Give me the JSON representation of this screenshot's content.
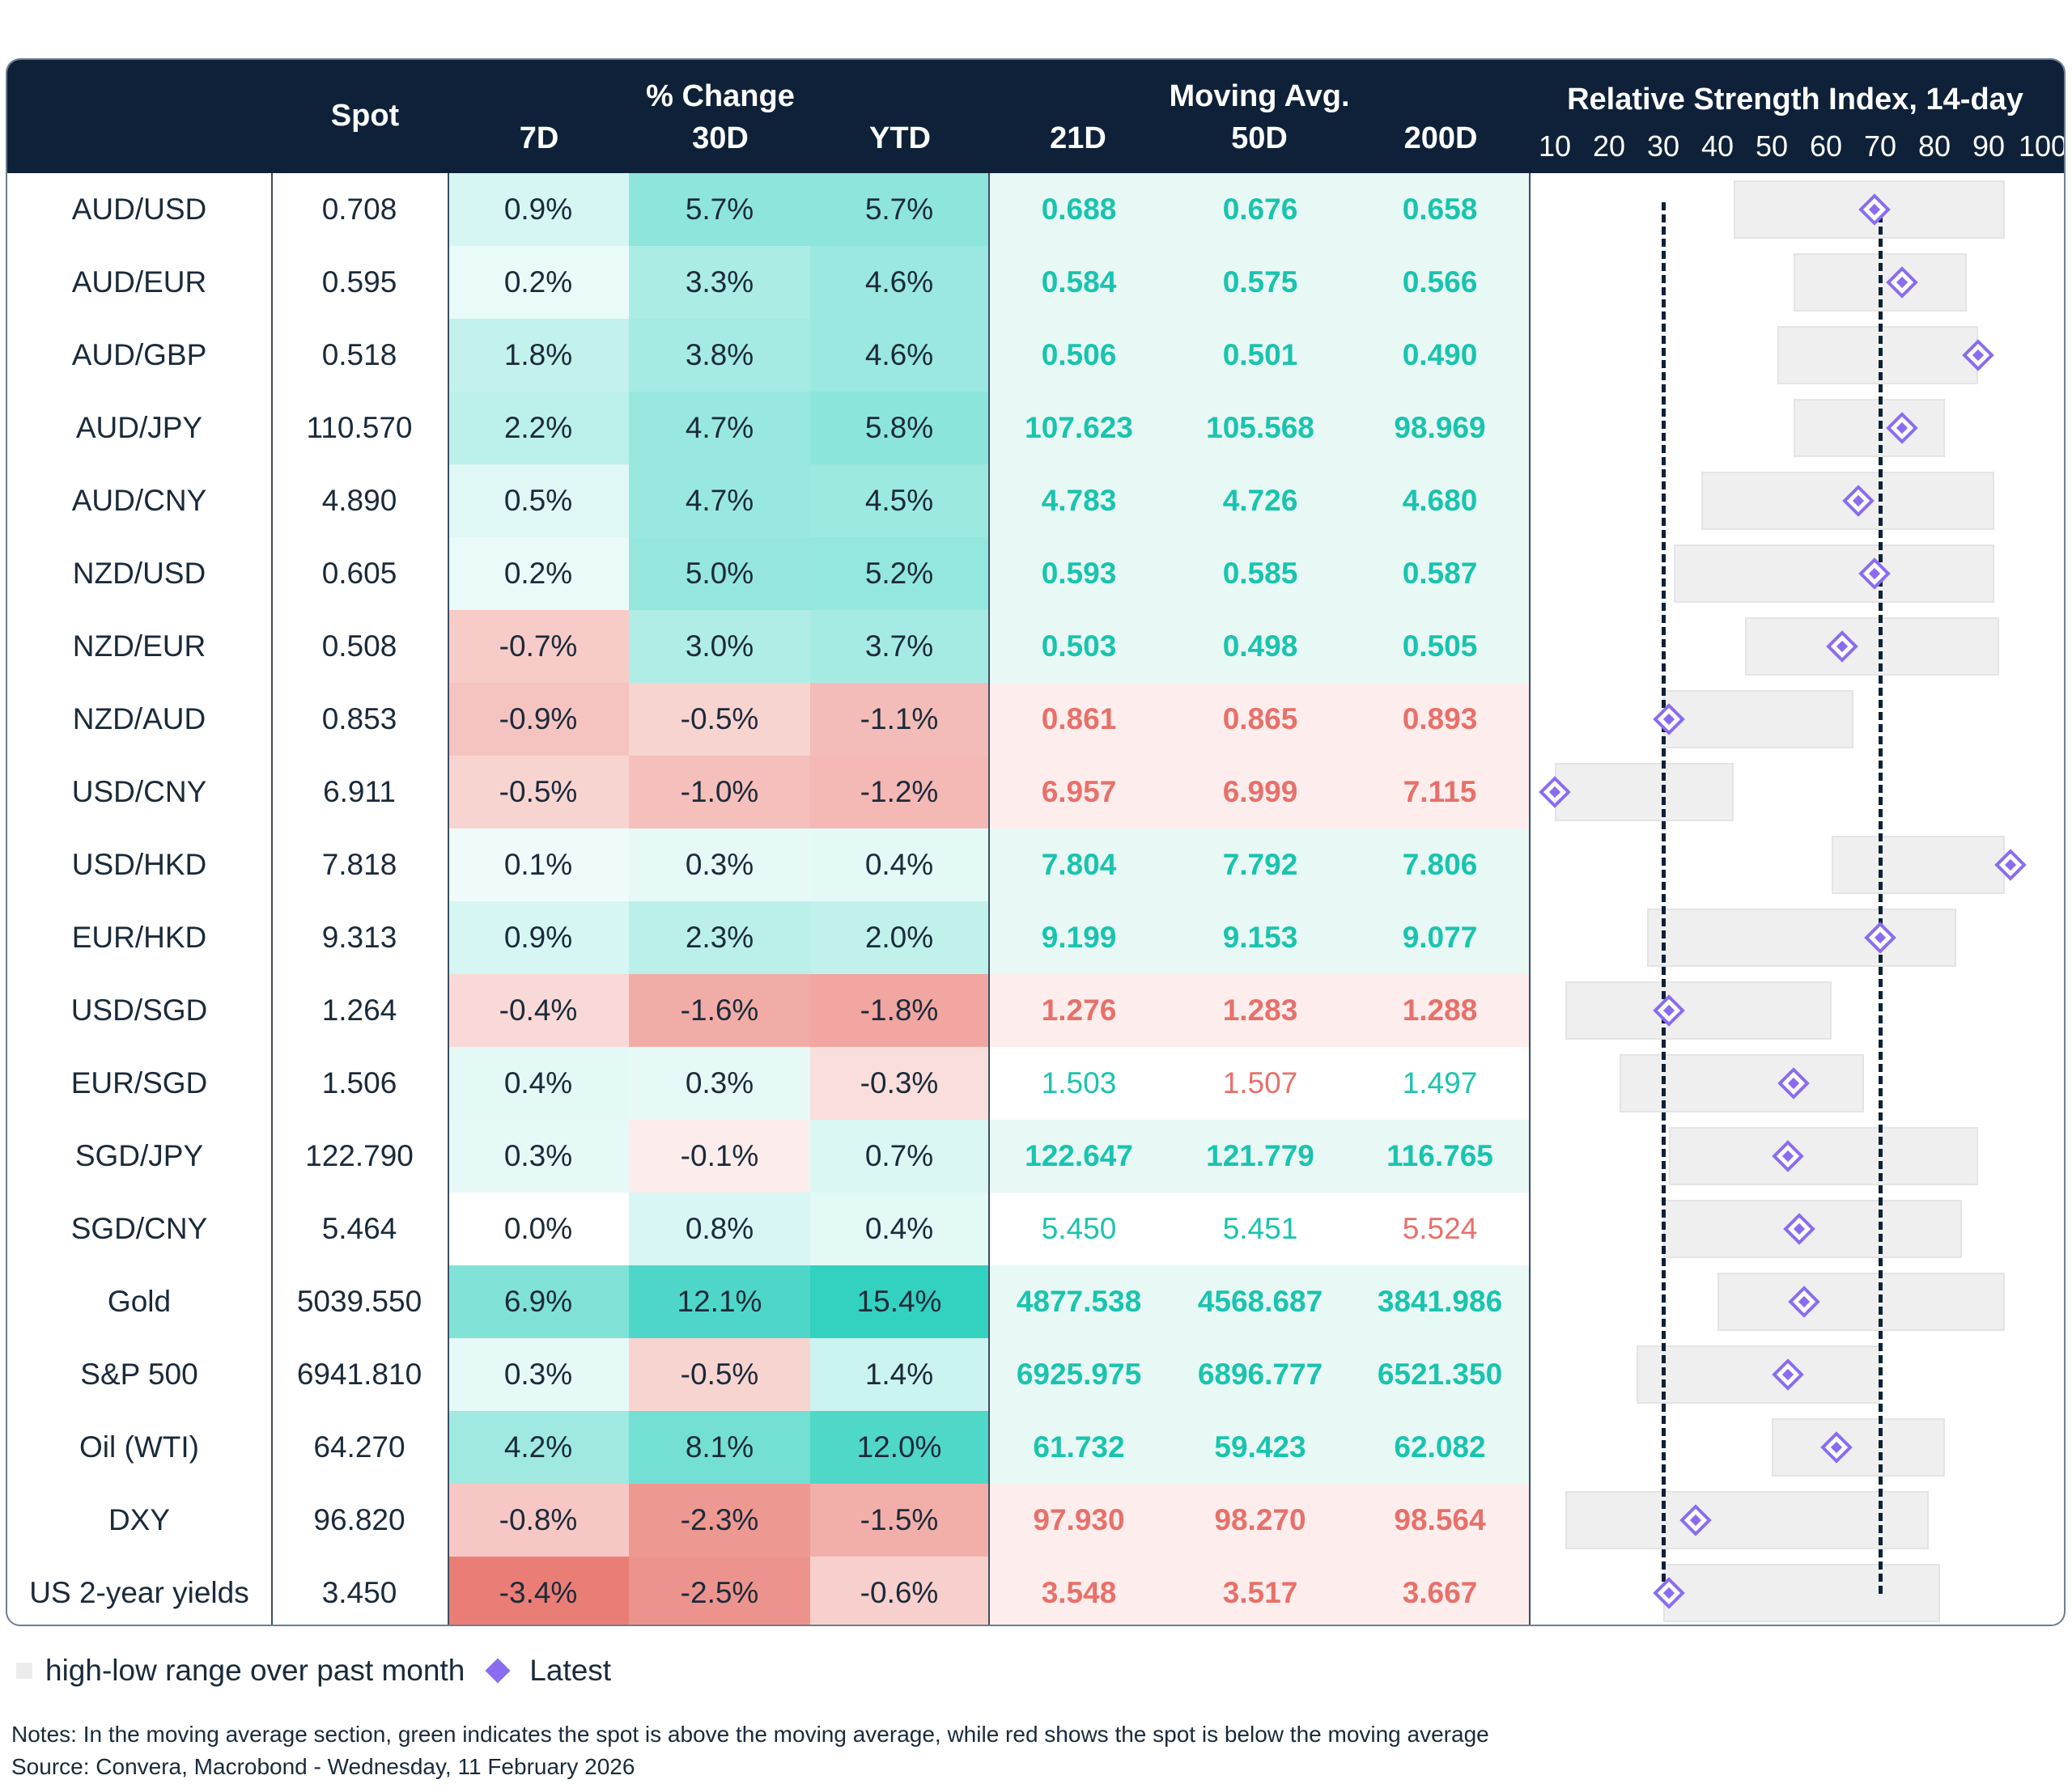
{
  "header": {
    "spot": "Spot",
    "pct_change": "% Change",
    "pct_cols": [
      "7D",
      "30D",
      "YTD"
    ],
    "moving_avg": "Moving Avg.",
    "ma_cols": [
      "21D",
      "50D",
      "200D"
    ],
    "rsi_title": "Relative Strength Index, 14-day",
    "rsi_ticks": [
      "10",
      "20",
      "30",
      "40",
      "50",
      "60",
      "70",
      "80",
      "90",
      "100"
    ]
  },
  "colors": {
    "header_bg": "#0e2139",
    "green_text": "#19c4ae",
    "red_text": "#e8706a",
    "rsi_marker": "#8a6cf0"
  },
  "rows": [
    {
      "name": "AUD/USD",
      "spot": "0.708",
      "d7": "0.9%",
      "d30": "5.7%",
      "ytd": "5.7%",
      "ma21": "0.688",
      "ma50": "0.676",
      "ma200": "0.658",
      "ma_bold": true,
      "rsi_low": 43,
      "rsi_high": 93,
      "rsi": 69
    },
    {
      "name": "AUD/EUR",
      "spot": "0.595",
      "d7": "0.2%",
      "d30": "3.3%",
      "ytd": "4.6%",
      "ma21": "0.584",
      "ma50": "0.575",
      "ma200": "0.566",
      "ma_bold": true,
      "rsi_low": 54,
      "rsi_high": 86,
      "rsi": 74
    },
    {
      "name": "AUD/GBP",
      "spot": "0.518",
      "d7": "1.8%",
      "d30": "3.8%",
      "ytd": "4.6%",
      "ma21": "0.506",
      "ma50": "0.501",
      "ma200": "0.490",
      "ma_bold": true,
      "rsi_low": 51,
      "rsi_high": 88,
      "rsi": 88
    },
    {
      "name": "AUD/JPY",
      "spot": "110.570",
      "d7": "2.2%",
      "d30": "4.7%",
      "ytd": "5.8%",
      "ma21": "107.623",
      "ma50": "105.568",
      "ma200": "98.969",
      "ma_bold": true,
      "rsi_low": 54,
      "rsi_high": 82,
      "rsi": 74
    },
    {
      "name": "AUD/CNY",
      "spot": "4.890",
      "d7": "0.5%",
      "d30": "4.7%",
      "ytd": "4.5%",
      "ma21": "4.783",
      "ma50": "4.726",
      "ma200": "4.680",
      "ma_bold": true,
      "rsi_low": 37,
      "rsi_high": 91,
      "rsi": 66
    },
    {
      "name": "NZD/USD",
      "spot": "0.605",
      "d7": "0.2%",
      "d30": "5.0%",
      "ytd": "5.2%",
      "ma21": "0.593",
      "ma50": "0.585",
      "ma200": "0.587",
      "ma_bold": true,
      "rsi_low": 32,
      "rsi_high": 91,
      "rsi": 69
    },
    {
      "name": "NZD/EUR",
      "spot": "0.508",
      "d7": "-0.7%",
      "d30": "3.0%",
      "ytd": "3.7%",
      "ma21": "0.503",
      "ma50": "0.498",
      "ma200": "0.505",
      "ma_bold": true,
      "rsi_low": 45,
      "rsi_high": 92,
      "rsi": 63
    },
    {
      "name": "NZD/AUD",
      "spot": "0.853",
      "d7": "-0.9%",
      "d30": "-0.5%",
      "ytd": "-1.1%",
      "ma21": "0.861",
      "ma50": "0.865",
      "ma200": "0.893",
      "ma_bold": true,
      "rsi_low": 30,
      "rsi_high": 65,
      "rsi": 31
    },
    {
      "name": "USD/CNY",
      "spot": "6.911",
      "d7": "-0.5%",
      "d30": "-1.0%",
      "ytd": "-1.2%",
      "ma21": "6.957",
      "ma50": "6.999",
      "ma200": "7.115",
      "ma_bold": true,
      "rsi_low": 10,
      "rsi_high": 43,
      "rsi": 10
    },
    {
      "name": "USD/HKD",
      "spot": "7.818",
      "d7": "0.1%",
      "d30": "0.3%",
      "ytd": "0.4%",
      "ma21": "7.804",
      "ma50": "7.792",
      "ma200": "7.806",
      "ma_bold": true,
      "rsi_low": 61,
      "rsi_high": 93,
      "rsi": 94
    },
    {
      "name": "EUR/HKD",
      "spot": "9.313",
      "d7": "0.9%",
      "d30": "2.3%",
      "ytd": "2.0%",
      "ma21": "9.199",
      "ma50": "9.153",
      "ma200": "9.077",
      "ma_bold": true,
      "rsi_low": 27,
      "rsi_high": 84,
      "rsi": 70
    },
    {
      "name": "USD/SGD",
      "spot": "1.264",
      "d7": "-0.4%",
      "d30": "-1.6%",
      "ytd": "-1.8%",
      "ma21": "1.276",
      "ma50": "1.283",
      "ma200": "1.288",
      "ma_bold": true,
      "rsi_low": 12,
      "rsi_high": 61,
      "rsi": 31
    },
    {
      "name": "EUR/SGD",
      "spot": "1.506",
      "d7": "0.4%",
      "d30": "0.3%",
      "ytd": "-0.3%",
      "ma21": "1.503",
      "ma50": "1.507",
      "ma200": "1.497",
      "ma_bold": false,
      "rsi_low": 22,
      "rsi_high": 67,
      "rsi": 54
    },
    {
      "name": "SGD/JPY",
      "spot": "122.790",
      "d7": "0.3%",
      "d30": "-0.1%",
      "ytd": "0.7%",
      "ma21": "122.647",
      "ma50": "121.779",
      "ma200": "116.765",
      "ma_bold": true,
      "rsi_low": 31,
      "rsi_high": 88,
      "rsi": 53
    },
    {
      "name": "SGD/CNY",
      "spot": "5.464",
      "d7": "0.0%",
      "d30": "0.8%",
      "ytd": "0.4%",
      "ma21": "5.450",
      "ma50": "5.451",
      "ma200": "5.524",
      "ma_bold": false,
      "rsi_low": 30,
      "rsi_high": 85,
      "rsi": 55
    },
    {
      "name": "Gold",
      "spot": "5039.550",
      "d7": "6.9%",
      "d30": "12.1%",
      "ytd": "15.4%",
      "ma21": "4877.538",
      "ma50": "4568.687",
      "ma200": "3841.986",
      "ma_bold": true,
      "rsi_low": 40,
      "rsi_high": 93,
      "rsi": 56
    },
    {
      "name": "S&P 500",
      "spot": "6941.810",
      "d7": "0.3%",
      "d30": "-0.5%",
      "ytd": "1.4%",
      "ma21": "6925.975",
      "ma50": "6896.777",
      "ma200": "6521.350",
      "ma_bold": true,
      "rsi_low": 25,
      "rsi_high": 70,
      "rsi": 53
    },
    {
      "name": "Oil (WTI)",
      "spot": "64.270",
      "d7": "4.2%",
      "d30": "8.1%",
      "ytd": "12.0%",
      "ma21": "61.732",
      "ma50": "59.423",
      "ma200": "62.082",
      "ma_bold": true,
      "rsi_low": 50,
      "rsi_high": 82,
      "rsi": 62
    },
    {
      "name": "DXY",
      "spot": "96.820",
      "d7": "-0.8%",
      "d30": "-2.3%",
      "ytd": "-1.5%",
      "ma21": "97.930",
      "ma50": "98.270",
      "ma200": "98.564",
      "ma_bold": true,
      "rsi_low": 12,
      "rsi_high": 79,
      "rsi": 36
    },
    {
      "name": "US 2-year yields",
      "spot": "3.450",
      "d7": "-3.4%",
      "d30": "-2.5%",
      "ytd": "-0.6%",
      "ma21": "3.548",
      "ma50": "3.517",
      "ma200": "3.667",
      "ma_bold": true,
      "rsi_low": 30,
      "rsi_high": 81,
      "rsi": 31
    }
  ],
  "rsi_reference_lines": [
    30,
    70
  ],
  "legend": {
    "range_label": "high-low range over past month",
    "latest_label": "Latest"
  },
  "notes": {
    "line1": "Notes: In the moving average section, green indicates the spot is above the moving average, while red shows the spot is below the moving average",
    "line2": "Source: Convera, Macrobond - Wednesday, 11 February 2026"
  }
}
